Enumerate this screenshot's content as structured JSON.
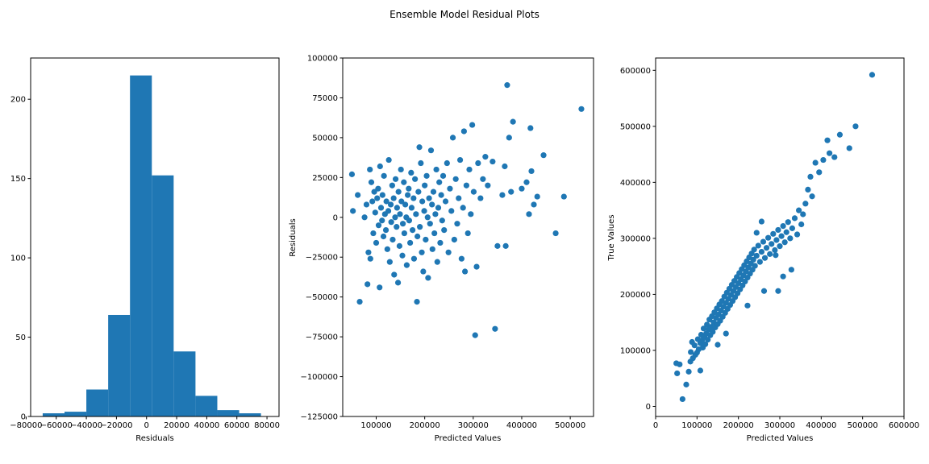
{
  "figure_title": "Ensemble Model Residual Plots",
  "colors": {
    "marker": "#1f77b4",
    "axes": "#000000",
    "background": "#ffffff"
  },
  "chart_data": [
    {
      "type": "bar",
      "title": "",
      "xlabel": "Residuals",
      "ylabel": "",
      "xlim": [
        -77000,
        88000
      ],
      "ylim": [
        0,
        226
      ],
      "xticks": [
        -80000,
        -60000,
        -40000,
        -20000,
        0,
        20000,
        40000,
        60000,
        80000
      ],
      "xtick_labels": [
        "−80000",
        "−60000",
        "−40000",
        "−20000",
        "0",
        "20000",
        "40000",
        "60000",
        "80000"
      ],
      "yticks": [
        0,
        50,
        100,
        150,
        200
      ],
      "ytick_labels": [
        "0",
        "50",
        "100",
        "150",
        "200"
      ],
      "bin_edges": [
        -69000,
        -54500,
        -40000,
        -25500,
        -11000,
        3500,
        18000,
        32500,
        47000,
        61500,
        76000
      ],
      "counts": [
        2,
        3,
        17,
        64,
        215,
        152,
        41,
        13,
        4,
        2
      ],
      "grid": false
    },
    {
      "type": "scatter",
      "title": "",
      "xlabel": "Predicted Values",
      "ylabel": "Residuals",
      "xlim": [
        31000,
        548000
      ],
      "ylim": [
        -125000,
        100000
      ],
      "xticks": [
        100000,
        200000,
        300000,
        400000,
        500000
      ],
      "xtick_labels": [
        "100000",
        "200000",
        "300000",
        "400000",
        "500000"
      ],
      "yticks": [
        -125000,
        -100000,
        -75000,
        -50000,
        -25000,
        0,
        25000,
        50000,
        75000,
        100000
      ],
      "ytick_labels": [
        "−125000",
        "−100000",
        "−75000",
        "−50000",
        "−25000",
        "0",
        "25000",
        "50000",
        "75000",
        "100000"
      ],
      "points": [
        [
          50000,
          27000
        ],
        [
          52000,
          4000
        ],
        [
          62000,
          14000
        ],
        [
          66000,
          -53000
        ],
        [
          76000,
          0
        ],
        [
          80000,
          8000
        ],
        [
          82000,
          -42000
        ],
        [
          84000,
          -22000
        ],
        [
          87000,
          30000
        ],
        [
          88000,
          -26000
        ],
        [
          90000,
          22000
        ],
        [
          92000,
          10000
        ],
        [
          94000,
          -10000
        ],
        [
          96000,
          16000
        ],
        [
          98000,
          3000
        ],
        [
          100000,
          -16000
        ],
        [
          102000,
          12000
        ],
        [
          104000,
          18000
        ],
        [
          105000,
          -5000
        ],
        [
          107000,
          -44000
        ],
        [
          108000,
          32000
        ],
        [
          110000,
          6000
        ],
        [
          112000,
          -2000
        ],
        [
          113000,
          14000
        ],
        [
          115000,
          -12000
        ],
        [
          116000,
          26000
        ],
        [
          118000,
          2000
        ],
        [
          120000,
          -8000
        ],
        [
          121000,
          10000
        ],
        [
          123000,
          -20000
        ],
        [
          125000,
          4000
        ],
        [
          126000,
          36000
        ],
        [
          128000,
          -28000
        ],
        [
          130000,
          8000
        ],
        [
          131000,
          -3000
        ],
        [
          133000,
          20000
        ],
        [
          134000,
          -14000
        ],
        [
          136000,
          12000
        ],
        [
          137000,
          -36000
        ],
        [
          139000,
          0
        ],
        [
          140000,
          24000
        ],
        [
          142000,
          -6000
        ],
        [
          143000,
          6000
        ],
        [
          145000,
          -41000
        ],
        [
          146000,
          16000
        ],
        [
          148000,
          -18000
        ],
        [
          149000,
          2000
        ],
        [
          151000,
          30000
        ],
        [
          152000,
          10000
        ],
        [
          154000,
          -24000
        ],
        [
          155000,
          -4000
        ],
        [
          157000,
          22000
        ],
        [
          158000,
          -10000
        ],
        [
          160000,
          8000
        ],
        [
          162000,
          0
        ],
        [
          163000,
          -30000
        ],
        [
          165000,
          14000
        ],
        [
          167000,
          18000
        ],
        [
          168000,
          -2000
        ],
        [
          170000,
          -16000
        ],
        [
          172000,
          28000
        ],
        [
          173000,
          6000
        ],
        [
          175000,
          -8000
        ],
        [
          177000,
          12000
        ],
        [
          178000,
          -26000
        ],
        [
          180000,
          24000
        ],
        [
          182000,
          2000
        ],
        [
          184000,
          -53000
        ],
        [
          185000,
          -12000
        ],
        [
          187000,
          16000
        ],
        [
          189000,
          44000
        ],
        [
          190000,
          -6000
        ],
        [
          192000,
          34000
        ],
        [
          194000,
          -22000
        ],
        [
          195000,
          10000
        ],
        [
          197000,
          -34000
        ],
        [
          199000,
          4000
        ],
        [
          200000,
          20000
        ],
        [
          202000,
          -14000
        ],
        [
          204000,
          26000
        ],
        [
          206000,
          0
        ],
        [
          207000,
          -38000
        ],
        [
          209000,
          12000
        ],
        [
          211000,
          -4000
        ],
        [
          213000,
          42000
        ],
        [
          215000,
          8000
        ],
        [
          216000,
          -20000
        ],
        [
          218000,
          16000
        ],
        [
          220000,
          -10000
        ],
        [
          222000,
          2000
        ],
        [
          224000,
          30000
        ],
        [
          226000,
          -28000
        ],
        [
          228000,
          6000
        ],
        [
          230000,
          22000
        ],
        [
          232000,
          -16000
        ],
        [
          234000,
          14000
        ],
        [
          236000,
          -2000
        ],
        [
          238000,
          26000
        ],
        [
          240000,
          -8000
        ],
        [
          243000,
          10000
        ],
        [
          246000,
          34000
        ],
        [
          249000,
          -22000
        ],
        [
          252000,
          18000
        ],
        [
          255000,
          4000
        ],
        [
          258000,
          50000
        ],
        [
          261000,
          -14000
        ],
        [
          264000,
          24000
        ],
        [
          267000,
          -4000
        ],
        [
          270000,
          12000
        ],
        [
          273000,
          36000
        ],
        [
          276000,
          -26000
        ],
        [
          279000,
          6000
        ],
        [
          281000,
          54000
        ],
        [
          283000,
          -34000
        ],
        [
          286000,
          20000
        ],
        [
          289000,
          -10000
        ],
        [
          292000,
          30000
        ],
        [
          295000,
          2000
        ],
        [
          298000,
          58000
        ],
        [
          301000,
          16000
        ],
        [
          304000,
          -74000
        ],
        [
          307000,
          -31000
        ],
        [
          310000,
          34000
        ],
        [
          315000,
          12000
        ],
        [
          320000,
          24000
        ],
        [
          325000,
          38000
        ],
        [
          330000,
          20000
        ],
        [
          340000,
          35000
        ],
        [
          345000,
          -70000
        ],
        [
          350000,
          -18000
        ],
        [
          360000,
          14000
        ],
        [
          365000,
          32000
        ],
        [
          367000,
          -18000
        ],
        [
          370000,
          83000
        ],
        [
          374000,
          50000
        ],
        [
          378000,
          16000
        ],
        [
          382000,
          60000
        ],
        [
          400000,
          18000
        ],
        [
          410000,
          22000
        ],
        [
          415000,
          2000
        ],
        [
          418000,
          56000
        ],
        [
          420000,
          29000
        ],
        [
          425000,
          8000
        ],
        [
          432000,
          13000
        ],
        [
          445000,
          39000
        ],
        [
          470000,
          -10000
        ],
        [
          487000,
          13000
        ],
        [
          523000,
          68000
        ]
      ],
      "grid": false
    },
    {
      "type": "scatter",
      "title": "",
      "xlabel": "Predicted Values",
      "ylabel": "True Values",
      "xlim": [
        0,
        600000
      ],
      "ylim": [
        -18000,
        622000
      ],
      "xticks": [
        0,
        100000,
        200000,
        300000,
        400000,
        500000,
        600000
      ],
      "xtick_labels": [
        "0",
        "100000",
        "200000",
        "300000",
        "400000",
        "500000",
        "600000"
      ],
      "yticks": [
        0,
        100000,
        200000,
        300000,
        400000,
        500000,
        600000
      ],
      "ytick_labels": [
        "0",
        "100000",
        "200000",
        "300000",
        "400000",
        "500000",
        "600000"
      ],
      "points": [
        [
          50000,
          77000
        ],
        [
          52000,
          59000
        ],
        [
          58000,
          75000
        ],
        [
          65000,
          13000
        ],
        [
          74000,
          39000
        ],
        [
          80000,
          62000
        ],
        [
          84000,
          80000
        ],
        [
          85000,
          97000
        ],
        [
          88000,
          115000
        ],
        [
          90000,
          86000
        ],
        [
          94000,
          109000
        ],
        [
          96000,
          92000
        ],
        [
          100000,
          96000
        ],
        [
          102000,
          120000
        ],
        [
          104000,
          102000
        ],
        [
          108000,
          113000
        ],
        [
          108000,
          64000
        ],
        [
          110000,
          128000
        ],
        [
          112000,
          118000
        ],
        [
          114000,
          105000
        ],
        [
          116000,
          139000
        ],
        [
          118000,
          124000
        ],
        [
          120000,
          111000
        ],
        [
          122000,
          130000
        ],
        [
          124000,
          146000
        ],
        [
          126000,
          119000
        ],
        [
          128000,
          137000
        ],
        [
          130000,
          155000
        ],
        [
          132000,
          127000
        ],
        [
          134000,
          142000
        ],
        [
          136000,
          161000
        ],
        [
          138000,
          133000
        ],
        [
          140000,
          150000
        ],
        [
          142000,
          168000
        ],
        [
          144000,
          141000
        ],
        [
          146000,
          158000
        ],
        [
          148000,
          175000
        ],
        [
          150000,
          147000
        ],
        [
          152000,
          164000
        ],
        [
          154000,
          182000
        ],
        [
          156000,
          153000
        ],
        [
          158000,
          171000
        ],
        [
          160000,
          188000
        ],
        [
          162000,
          160000
        ],
        [
          164000,
          178000
        ],
        [
          166000,
          196000
        ],
        [
          168000,
          167000
        ],
        [
          170000,
          185000
        ],
        [
          172000,
          203000
        ],
        [
          174000,
          174000
        ],
        [
          176000,
          192000
        ],
        [
          178000,
          210000
        ],
        [
          180000,
          181000
        ],
        [
          182000,
          199000
        ],
        [
          184000,
          217000
        ],
        [
          186000,
          188000
        ],
        [
          188000,
          206000
        ],
        [
          190000,
          224000
        ],
        [
          192000,
          195000
        ],
        [
          194000,
          213000
        ],
        [
          196000,
          231000
        ],
        [
          198000,
          202000
        ],
        [
          200000,
          220000
        ],
        [
          202000,
          238000
        ],
        [
          204000,
          209000
        ],
        [
          206000,
          227000
        ],
        [
          208000,
          245000
        ],
        [
          210000,
          216000
        ],
        [
          212000,
          234000
        ],
        [
          214000,
          252000
        ],
        [
          216000,
          223000
        ],
        [
          218000,
          241000
        ],
        [
          220000,
          259000
        ],
        [
          222000,
          230000
        ],
        [
          224000,
          248000
        ],
        [
          226000,
          266000
        ],
        [
          228000,
          237000
        ],
        [
          230000,
          255000
        ],
        [
          232000,
          273000
        ],
        [
          234000,
          244000
        ],
        [
          236000,
          262000
        ],
        [
          238000,
          280000
        ],
        [
          240000,
          251000
        ],
        [
          244000,
          269000
        ],
        [
          248000,
          287000
        ],
        [
          252000,
          258000
        ],
        [
          256000,
          276000
        ],
        [
          260000,
          294000
        ],
        [
          264000,
          265000
        ],
        [
          268000,
          283000
        ],
        [
          272000,
          301000
        ],
        [
          276000,
          272000
        ],
        [
          280000,
          290000
        ],
        [
          284000,
          308000
        ],
        [
          288000,
          279000
        ],
        [
          292000,
          297000
        ],
        [
          296000,
          315000
        ],
        [
          300000,
          286000
        ],
        [
          304000,
          304000
        ],
        [
          308000,
          322000
        ],
        [
          312000,
          293000
        ],
        [
          316000,
          311000
        ],
        [
          320000,
          329000
        ],
        [
          325000,
          300000
        ],
        [
          330000,
          318000
        ],
        [
          336000,
          336000
        ],
        [
          342000,
          307000
        ],
        [
          346000,
          350000
        ],
        [
          352000,
          325000
        ],
        [
          356000,
          343000
        ],
        [
          362000,
          362000
        ],
        [
          368000,
          387000
        ],
        [
          374000,
          410000
        ],
        [
          378000,
          375000
        ],
        [
          386000,
          435000
        ],
        [
          395000,
          418000
        ],
        [
          405000,
          440000
        ],
        [
          415000,
          475000
        ],
        [
          420000,
          452000
        ],
        [
          432000,
          445000
        ],
        [
          445000,
          485000
        ],
        [
          468000,
          461000
        ],
        [
          483000,
          500000
        ],
        [
          523000,
          592000
        ],
        [
          222000,
          180000
        ],
        [
          262000,
          206000
        ],
        [
          296000,
          206000
        ],
        [
          308000,
          232000
        ],
        [
          328000,
          244000
        ],
        [
          290000,
          270000
        ],
        [
          170000,
          130000
        ],
        [
          150000,
          110000
        ],
        [
          244000,
          310000
        ],
        [
          256000,
          330000
        ]
      ],
      "grid": false
    }
  ]
}
